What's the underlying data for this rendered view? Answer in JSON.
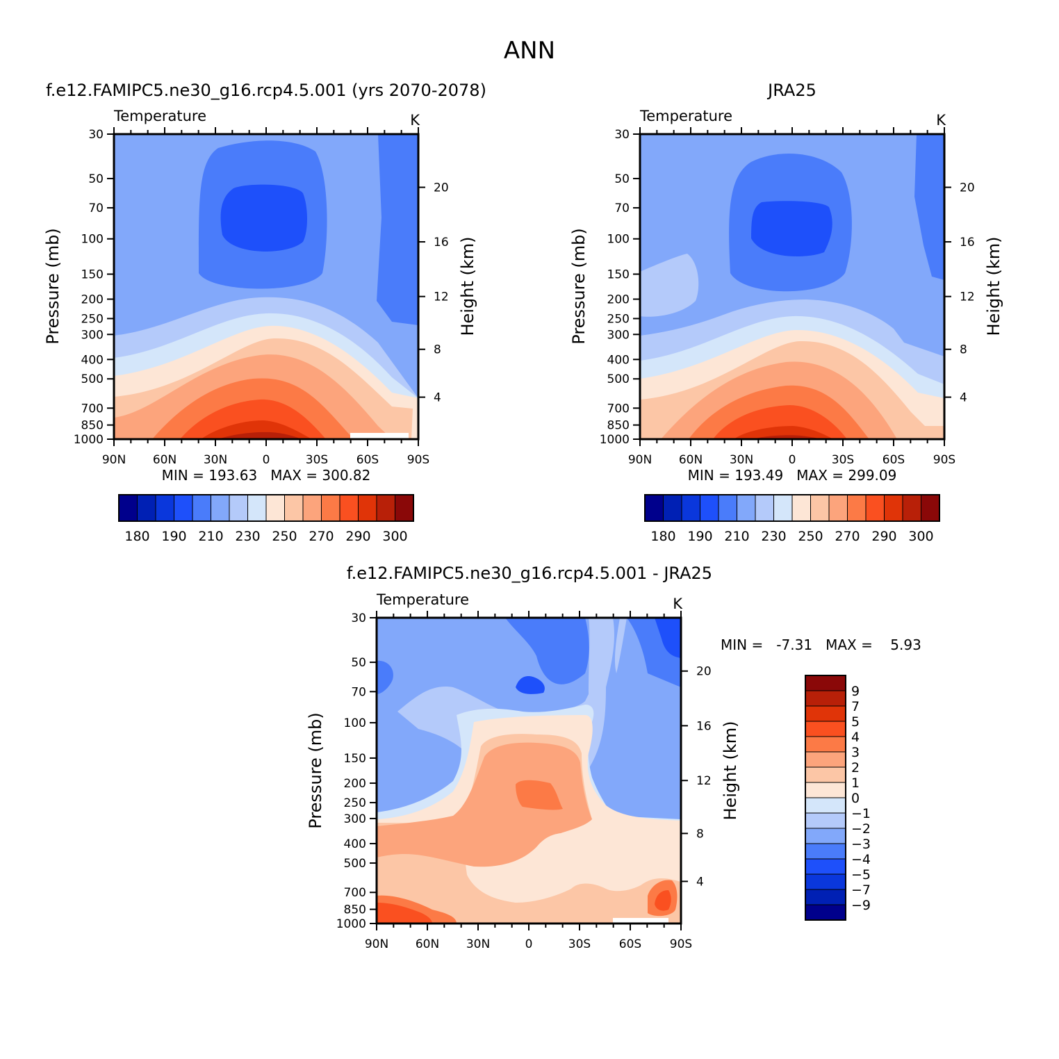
{
  "figure_title": "ANN",
  "panels": [
    {
      "heading": "f.e12.FAMIPC5.ne30_g16.rcp4.5.001 (yrs 2070-2078)",
      "variable": "Temperature",
      "units": "K",
      "ylabel_left": "Pressure (mb)",
      "ylabel_right": "Height (km)",
      "stats": "MIN = 193.63   MAX = 300.82"
    },
    {
      "heading": "JRA25",
      "variable": "Temperature",
      "units": "K",
      "ylabel_left": "Pressure (mb)",
      "ylabel_right": "Height (km)",
      "stats": "MIN = 193.49   MAX = 299.09"
    },
    {
      "heading": "f.e12.FAMIPC5.ne30_g16.rcp4.5.001 - JRA25",
      "variable": "Temperature",
      "units": "K",
      "ylabel_left": "Pressure (mb)",
      "ylabel_right": "Height (km)",
      "stats": "MIN =   -7.31   MAX =    5.93"
    }
  ],
  "axes": {
    "x_ticks": [
      "90N",
      "60N",
      "30N",
      "0",
      "30S",
      "60S",
      "90S"
    ],
    "pressure_ticks": [
      "30",
      "50",
      "70",
      "100",
      "150",
      "200",
      "250",
      "300",
      "400",
      "500",
      "700",
      "850",
      "1000"
    ],
    "height_ticks": [
      "20",
      "16",
      "12",
      "8",
      "4"
    ]
  },
  "colorbars": {
    "abs_labels": [
      "180",
      "190",
      "210",
      "230",
      "250",
      "270",
      "290",
      "300"
    ],
    "diff_labels": [
      "9",
      "7",
      "5",
      "4",
      "3",
      "2",
      "1",
      "0",
      "-1",
      "-2",
      "-3",
      "-4",
      "-5",
      "-7",
      "-9"
    ]
  },
  "colors": {
    "abs_fills": [
      "#00008c",
      "#0020b4",
      "#0a37dc",
      "#1e50fa",
      "#4a7cfa",
      "#82a8fa",
      "#b4cafa",
      "#d4e6fa",
      "#fde6d6",
      "#fcc6a6",
      "#fca47c",
      "#fc7a46",
      "#fa5020",
      "#e03408",
      "#b82008",
      "#8a0808"
    ],
    "diff_fills": [
      "#8a0808",
      "#b82008",
      "#e03408",
      "#fa5020",
      "#fc7a46",
      "#fca47c",
      "#fcc6a6",
      "#fde6d6",
      "#d4e6fa",
      "#b4cafa",
      "#82a8fa",
      "#4a7cfa",
      "#1e50fa",
      "#0a37dc",
      "#0020b4",
      "#00008c"
    ]
  },
  "chart_data": [
    {
      "type": "heatmap",
      "title": "Temperature",
      "units": "K",
      "x": [
        "90N",
        "60N",
        "30N",
        "0",
        "30S",
        "60S",
        "90S"
      ],
      "y_pressure_mb": [
        30,
        50,
        70,
        100,
        150,
        200,
        250,
        300,
        400,
        500,
        700,
        850,
        1000
      ],
      "y_height_km": [
        20,
        16,
        12,
        8,
        4
      ],
      "ylabel": "Pressure (mb)",
      "ylabel_right": "Height (km)",
      "levels": [
        180,
        190,
        200,
        210,
        220,
        230,
        240,
        250,
        260,
        270,
        280,
        290,
        295,
        300
      ],
      "min": 193.63,
      "max": 300.82
    },
    {
      "type": "heatmap",
      "title": "Temperature",
      "units": "K",
      "x": [
        "90N",
        "60N",
        "30N",
        "0",
        "30S",
        "60S",
        "90S"
      ],
      "y_pressure_mb": [
        30,
        50,
        70,
        100,
        150,
        200,
        250,
        300,
        400,
        500,
        700,
        850,
        1000
      ],
      "y_height_km": [
        20,
        16,
        12,
        8,
        4
      ],
      "ylabel": "Pressure (mb)",
      "ylabel_right": "Height (km)",
      "levels": [
        180,
        190,
        200,
        210,
        220,
        230,
        240,
        250,
        260,
        270,
        280,
        290,
        295,
        300
      ],
      "min": 193.49,
      "max": 299.09
    },
    {
      "type": "heatmap",
      "title": "Temperature",
      "units": "K",
      "x": [
        "90N",
        "60N",
        "30N",
        "0",
        "30S",
        "60S",
        "90S"
      ],
      "y_pressure_mb": [
        30,
        50,
        70,
        100,
        150,
        200,
        250,
        300,
        400,
        500,
        700,
        850,
        1000
      ],
      "y_height_km": [
        20,
        16,
        12,
        8,
        4
      ],
      "ylabel": "Pressure (mb)",
      "ylabel_right": "Height (km)",
      "levels": [
        -9,
        -7,
        -5,
        -4,
        -3,
        -2,
        -1,
        0,
        1,
        2,
        3,
        4,
        5,
        7,
        9
      ],
      "min": -7.31,
      "max": 5.93
    }
  ]
}
